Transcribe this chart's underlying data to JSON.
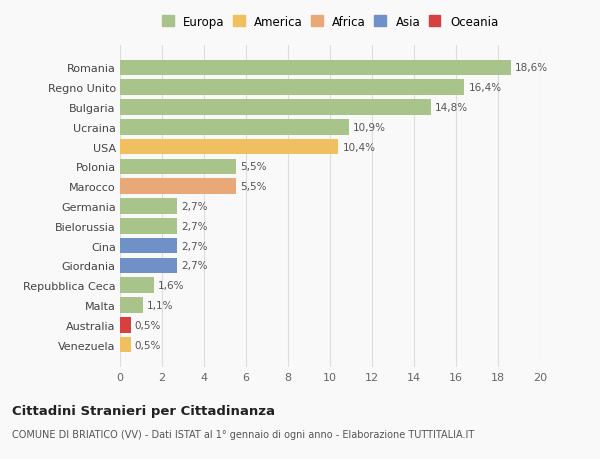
{
  "title": "Cittadini Stranieri per Cittadinanza",
  "subtitle": "COMUNE DI BRIATICO (VV) - Dati ISTAT al 1° gennaio di ogni anno - Elaborazione TUTTITALIA.IT",
  "categories": [
    "Romania",
    "Regno Unito",
    "Bulgaria",
    "Ucraina",
    "USA",
    "Polonia",
    "Marocco",
    "Germania",
    "Bielorussia",
    "Cina",
    "Giordania",
    "Repubblica Ceca",
    "Malta",
    "Australia",
    "Venezuela"
  ],
  "values": [
    18.6,
    16.4,
    14.8,
    10.9,
    10.4,
    5.5,
    5.5,
    2.7,
    2.7,
    2.7,
    2.7,
    1.6,
    1.1,
    0.5,
    0.5
  ],
  "labels": [
    "18,6%",
    "16,4%",
    "14,8%",
    "10,9%",
    "10,4%",
    "5,5%",
    "5,5%",
    "2,7%",
    "2,7%",
    "2,7%",
    "2,7%",
    "1,6%",
    "1,1%",
    "0,5%",
    "0,5%"
  ],
  "colors": [
    "#a8c48a",
    "#a8c48a",
    "#a8c48a",
    "#a8c48a",
    "#f0c060",
    "#a8c48a",
    "#e8a878",
    "#a8c48a",
    "#a8c48a",
    "#7090c8",
    "#7090c8",
    "#a8c48a",
    "#a8c48a",
    "#d84040",
    "#f0c060"
  ],
  "continent_colors": {
    "Europa": "#a8c48a",
    "America": "#f0c060",
    "Africa": "#e8a878",
    "Asia": "#7090c8",
    "Oceania": "#d84040"
  },
  "xlim": [
    0,
    20
  ],
  "xticks": [
    0,
    2,
    4,
    6,
    8,
    10,
    12,
    14,
    16,
    18,
    20
  ],
  "background_color": "#f9f9f9",
  "grid_color": "#dddddd"
}
